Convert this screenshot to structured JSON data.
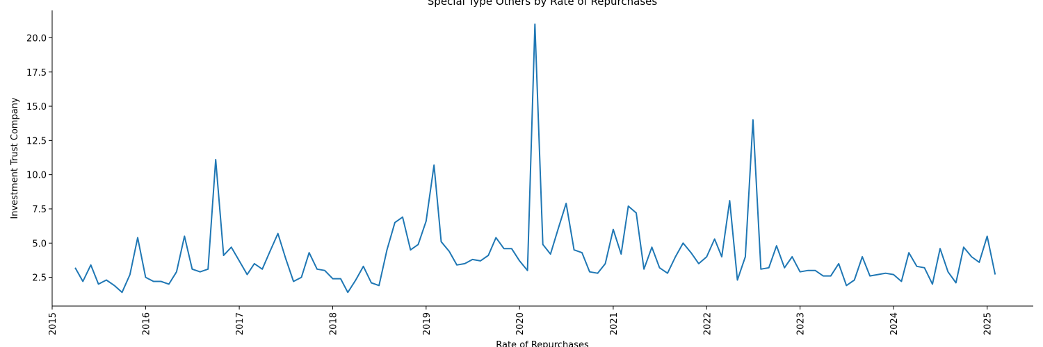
{
  "chart_data": {
    "type": "line",
    "title": "Special Type Others by Rate of Repurchases",
    "xlabel": "Rate of Repurchases",
    "ylabel": "Investment Trust Company",
    "xlim": [
      "2015-01-01",
      "2025-06-30"
    ],
    "ylim": [
      0.4,
      22.0
    ],
    "x_ticks": [
      "2015",
      "2016",
      "2017",
      "2018",
      "2019",
      "2020",
      "2021",
      "2022",
      "2023",
      "2024",
      "2025"
    ],
    "y_ticks": [
      "2.5",
      "5.0",
      "7.5",
      "10.0",
      "12.5",
      "15.0",
      "17.5",
      "20.0"
    ],
    "grid": false,
    "color": "#1f77b4",
    "series": [
      {
        "x": [
          "2015-04",
          "2015-05",
          "2015-06",
          "2015-07",
          "2015-08",
          "2015-09",
          "2015-10",
          "2015-11",
          "2015-12",
          "2016-01",
          "2016-02",
          "2016-03",
          "2016-04",
          "2016-05",
          "2016-06",
          "2016-07",
          "2016-08",
          "2016-09",
          "2016-10",
          "2016-11",
          "2016-12",
          "2017-01",
          "2017-02",
          "2017-03",
          "2017-04",
          "2017-05",
          "2017-06",
          "2017-07",
          "2017-08",
          "2017-09",
          "2017-10",
          "2017-11",
          "2017-12",
          "2018-01",
          "2018-02",
          "2018-03",
          "2018-04",
          "2018-05",
          "2018-06",
          "2018-07",
          "2018-08",
          "2018-09",
          "2018-10",
          "2018-11",
          "2018-12",
          "2019-01",
          "2019-02",
          "2019-03",
          "2019-04",
          "2019-05",
          "2019-06",
          "2019-07",
          "2019-08",
          "2019-09",
          "2019-10",
          "2019-11",
          "2019-12",
          "2020-01",
          "2020-02",
          "2020-03",
          "2020-04",
          "2020-05",
          "2020-06",
          "2020-07",
          "2020-08",
          "2020-09",
          "2020-10",
          "2020-11",
          "2020-12",
          "2021-01",
          "2021-02",
          "2021-03",
          "2021-04",
          "2021-05",
          "2021-06",
          "2021-07",
          "2021-08",
          "2021-09",
          "2021-10",
          "2021-11",
          "2021-12",
          "2022-01",
          "2022-02",
          "2022-03",
          "2022-04",
          "2022-05",
          "2022-06",
          "2022-07",
          "2022-08",
          "2022-09",
          "2022-10",
          "2022-11",
          "2022-12",
          "2023-01",
          "2023-02",
          "2023-03",
          "2023-04",
          "2023-05",
          "2023-06",
          "2023-07",
          "2023-08",
          "2023-09",
          "2023-10",
          "2023-11",
          "2023-12",
          "2024-01",
          "2024-02",
          "2024-03",
          "2024-04",
          "2024-05",
          "2024-06",
          "2024-07",
          "2024-08",
          "2024-09",
          "2024-10",
          "2024-11",
          "2024-12",
          "2025-01",
          "2025-02"
        ],
        "values": [
          3.2,
          2.2,
          3.4,
          2.0,
          2.3,
          1.9,
          1.4,
          2.7,
          5.4,
          2.5,
          2.2,
          2.2,
          2.0,
          2.9,
          5.5,
          3.1,
          2.9,
          3.1,
          11.1,
          4.1,
          4.7,
          3.7,
          2.7,
          3.5,
          3.1,
          4.4,
          5.7,
          3.9,
          2.2,
          2.5,
          4.3,
          3.1,
          3.0,
          2.4,
          2.4,
          1.4,
          2.3,
          3.3,
          2.1,
          1.9,
          4.5,
          6.5,
          6.9,
          4.5,
          4.9,
          6.6,
          10.7,
          5.1,
          4.4,
          3.4,
          3.5,
          3.8,
          3.7,
          4.1,
          5.4,
          4.6,
          4.6,
          3.7,
          3.0,
          21.0,
          4.9,
          4.2,
          6.1,
          7.9,
          4.5,
          4.3,
          2.9,
          2.8,
          3.5,
          6.0,
          4.2,
          7.7,
          7.2,
          3.1,
          4.7,
          3.2,
          2.8,
          4.0,
          5.0,
          4.3,
          3.5,
          4.0,
          5.3,
          4.0,
          8.1,
          2.3,
          4.0,
          14.0,
          3.1,
          3.2,
          4.8,
          3.2,
          4.0,
          2.9,
          3.0,
          3.0,
          2.6,
          2.6,
          3.5,
          1.9,
          2.3,
          4.0,
          2.6,
          2.7,
          2.8,
          2.7,
          2.2,
          4.3,
          3.3,
          3.2,
          2.0,
          4.6,
          2.9,
          2.1,
          4.7,
          4.0,
          3.6,
          5.5,
          2.7
        ]
      }
    ]
  }
}
